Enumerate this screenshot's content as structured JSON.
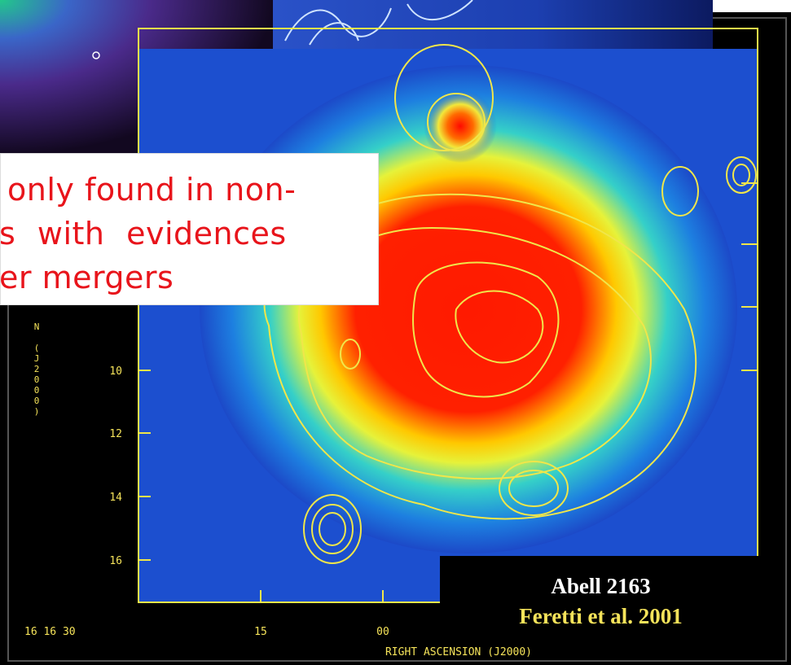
{
  "callout": {
    "lines": [
      "only found in non-",
      "s with evidences",
      "er mergers"
    ]
  },
  "axes": {
    "y_label": "N (J2000)",
    "y_ticks": [
      "10",
      "12",
      "14",
      "16"
    ],
    "x_ticks": [
      "16 16 30",
      "15",
      "00"
    ],
    "x_label": "RIGHT ASCENSION (J2000)"
  },
  "caption": {
    "title": "Abell 2163",
    "reference": "Feretti et al. 2001"
  }
}
